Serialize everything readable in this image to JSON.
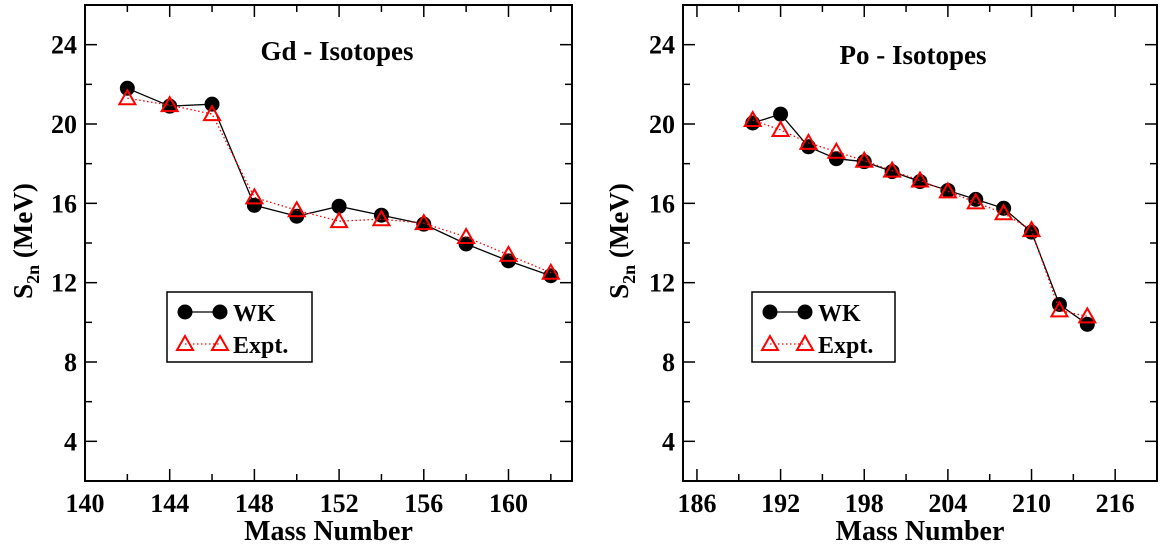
{
  "chart_data": [
    {
      "type": "line",
      "title": "Gd - Isotopes",
      "xlabel": "Mass Number",
      "ylabel_main": "S",
      "ylabel_sub": "2n",
      "ylabel_unit": " (MeV)",
      "xlim": [
        140,
        163
      ],
      "ylim": [
        2,
        26
      ],
      "xticks": [
        140,
        144,
        148,
        152,
        156,
        160
      ],
      "yticks": [
        4,
        8,
        12,
        16,
        20,
        24
      ],
      "x_minor_step": 2,
      "y_minor_step": 2,
      "legend_position": "middle-left",
      "series": [
        {
          "name": "WK",
          "marker": "filled-circle",
          "color": "#000000",
          "line": "solid",
          "x": [
            142,
            144,
            146,
            148,
            150,
            152,
            154,
            156,
            158,
            160,
            162
          ],
          "y": [
            21.8,
            20.9,
            21.0,
            15.9,
            15.35,
            15.85,
            15.4,
            14.95,
            13.95,
            13.1,
            12.35
          ]
        },
        {
          "name": "Expt.",
          "marker": "open-triangle",
          "color": "#ff0000",
          "line": "dotted",
          "x": [
            142,
            144,
            146,
            148,
            150,
            152,
            154,
            156,
            158,
            160,
            162
          ],
          "y": [
            21.3,
            20.95,
            20.5,
            16.3,
            15.65,
            15.1,
            15.2,
            15.0,
            14.3,
            13.4,
            12.5
          ]
        }
      ]
    },
    {
      "type": "line",
      "title": "Po - Isotopes",
      "xlabel": "Mass Number",
      "ylabel_main": "S",
      "ylabel_sub": "2n",
      "ylabel_unit": " (MeV)",
      "xlim": [
        185,
        219
      ],
      "ylim": [
        2,
        26
      ],
      "xticks": [
        186,
        192,
        198,
        204,
        210,
        216
      ],
      "yticks": [
        4,
        8,
        12,
        16,
        20,
        24
      ],
      "x_minor_step": 3,
      "y_minor_step": 2,
      "legend_position": "middle-left",
      "series": [
        {
          "name": "WK",
          "marker": "filled-circle",
          "color": "#000000",
          "line": "solid",
          "x": [
            190,
            192,
            194,
            196,
            198,
            200,
            202,
            204,
            206,
            208,
            210,
            212,
            214
          ],
          "y": [
            20.05,
            20.5,
            18.85,
            18.25,
            18.1,
            17.6,
            17.1,
            16.65,
            16.2,
            15.75,
            14.55,
            10.9,
            9.9
          ]
        },
        {
          "name": "Expt.",
          "marker": "open-triangle",
          "color": "#ff0000",
          "line": "dotted",
          "x": [
            190,
            192,
            194,
            196,
            198,
            200,
            202,
            204,
            206,
            208,
            210,
            212,
            214
          ],
          "y": [
            20.2,
            19.7,
            19.05,
            18.6,
            18.15,
            17.65,
            17.15,
            16.6,
            16.05,
            15.5,
            14.65,
            10.6,
            10.3
          ]
        }
      ]
    }
  ]
}
